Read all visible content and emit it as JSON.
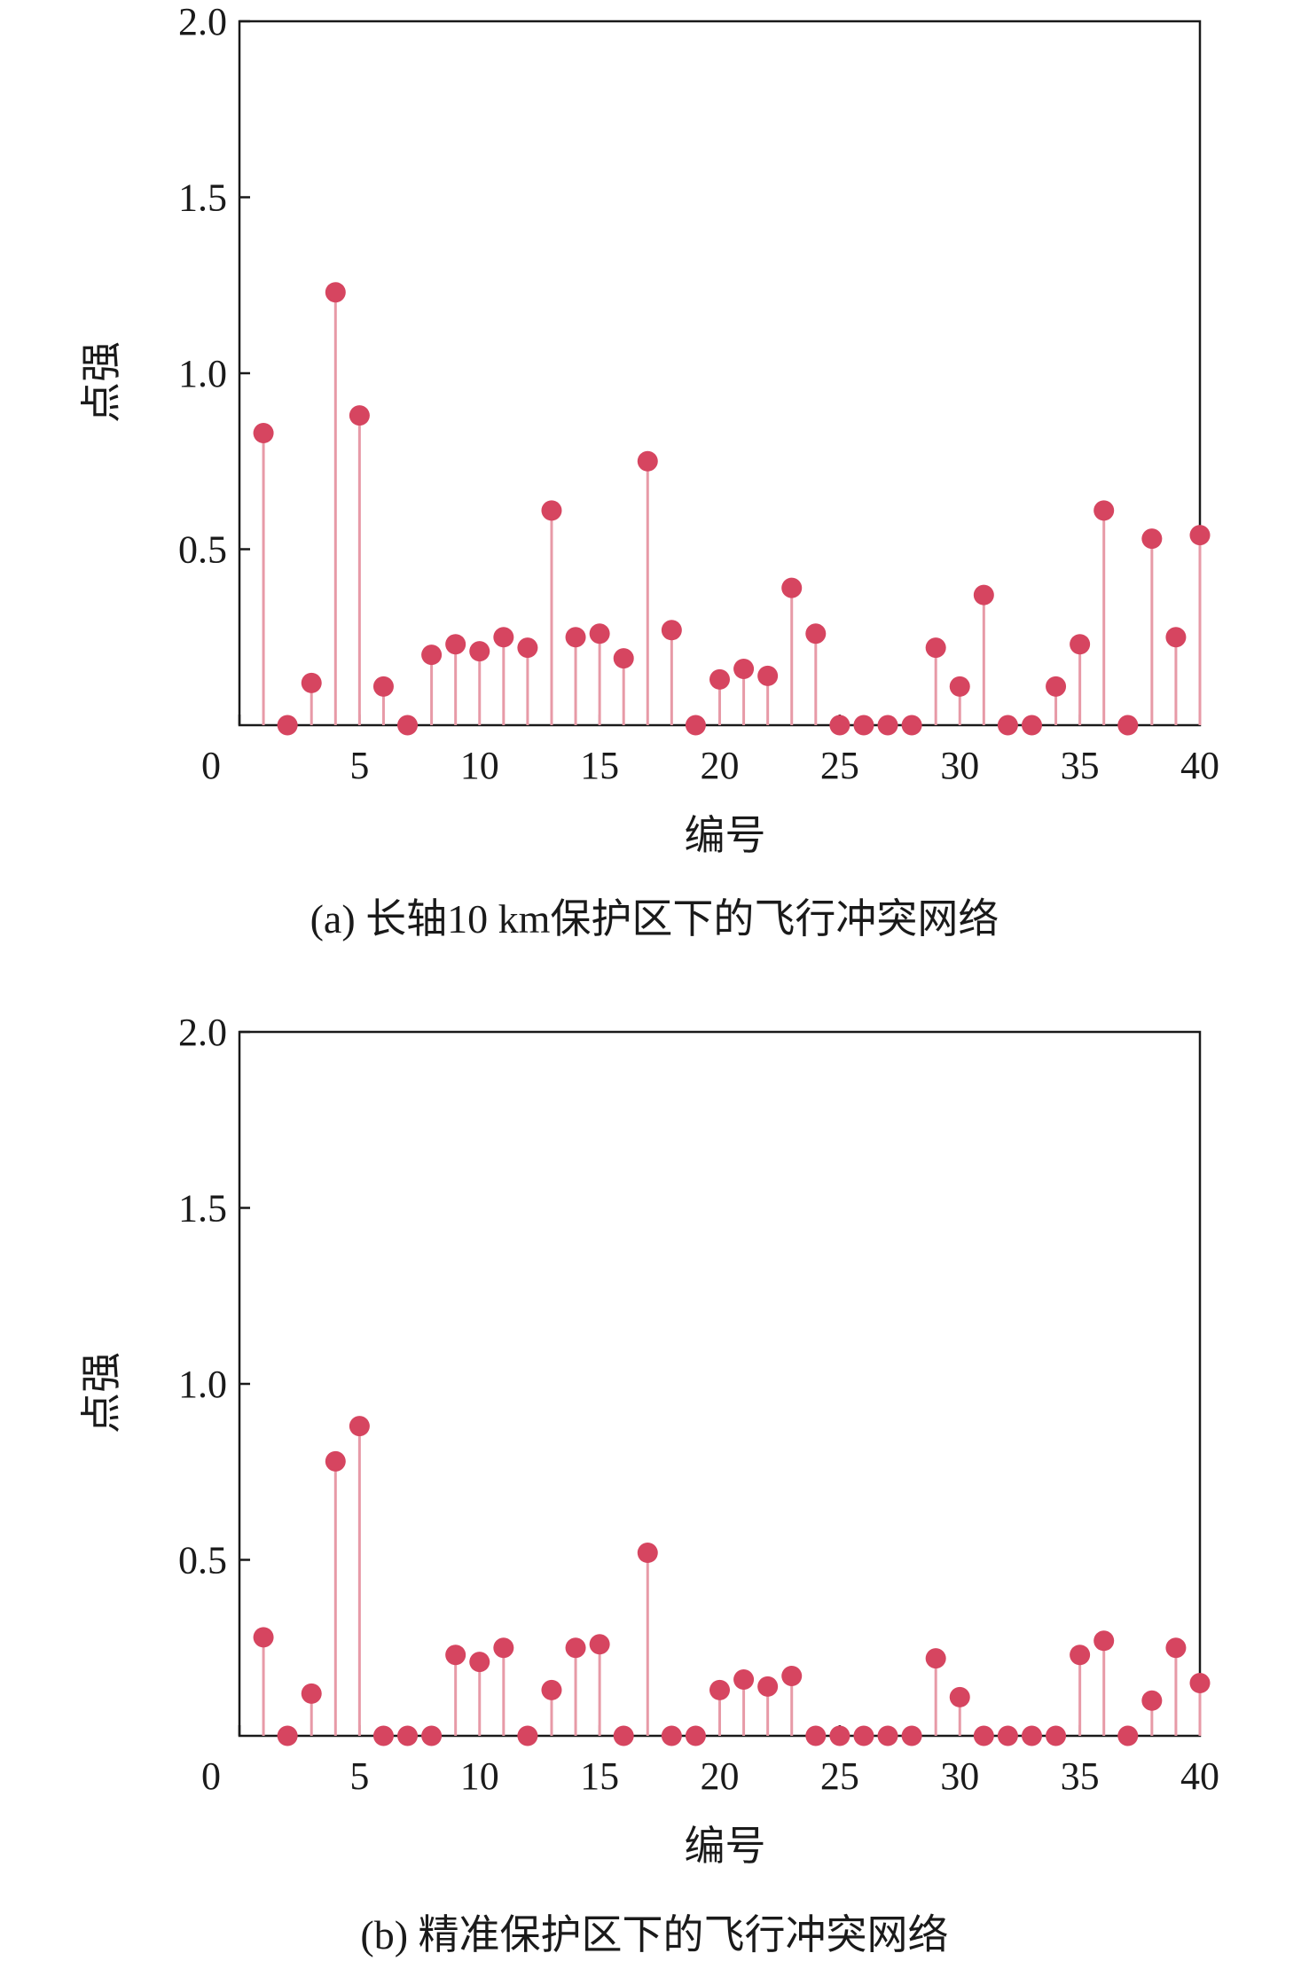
{
  "chart_data": [
    {
      "type": "stem",
      "caption": "(a) 长轴10 km保护区下的飞行冲突网络",
      "xlabel": "编号",
      "ylabel": "点强",
      "xlim": [
        0,
        40
      ],
      "ylim": [
        0,
        2.0
      ],
      "xticks": [
        0,
        5,
        10,
        15,
        20,
        25,
        30,
        35,
        40
      ],
      "xtick_labels": [
        "0",
        "5",
        "10",
        "15",
        "20",
        "25",
        "30",
        "35",
        "40"
      ],
      "yticks": [
        0.5,
        1.0,
        1.5,
        2.0
      ],
      "ytick_labels": [
        "0.5",
        "1.0",
        "1.5",
        "2.0"
      ],
      "grid": false,
      "marker_color": "#d64560",
      "x": [
        1,
        2,
        3,
        4,
        5,
        6,
        7,
        8,
        9,
        10,
        11,
        12,
        13,
        14,
        15,
        16,
        17,
        18,
        19,
        20,
        21,
        22,
        23,
        24,
        25,
        26,
        27,
        28,
        29,
        30,
        31,
        32,
        33,
        34,
        35,
        36,
        37,
        38,
        39,
        40
      ],
      "values": [
        0.83,
        0.0,
        0.12,
        1.23,
        0.88,
        0.11,
        0.0,
        0.2,
        0.23,
        0.21,
        0.25,
        0.22,
        0.61,
        0.25,
        0.26,
        0.19,
        0.75,
        0.27,
        0.0,
        0.13,
        0.16,
        0.14,
        0.39,
        0.26,
        0.0,
        0.0,
        0.0,
        0.0,
        0.22,
        0.11,
        0.37,
        0.0,
        0.0,
        0.11,
        0.23,
        0.61,
        0.0,
        0.53,
        0.25,
        0.54
      ]
    },
    {
      "type": "stem",
      "caption": "(b) 精准保护区下的飞行冲突网络",
      "xlabel": "编号",
      "ylabel": "点强",
      "xlim": [
        0,
        40
      ],
      "ylim": [
        0,
        2.0
      ],
      "xticks": [
        0,
        5,
        10,
        15,
        20,
        25,
        30,
        35,
        40
      ],
      "xtick_labels": [
        "0",
        "5",
        "10",
        "15",
        "20",
        "25",
        "30",
        "35",
        "40"
      ],
      "yticks": [
        0.5,
        1.0,
        1.5,
        2.0
      ],
      "ytick_labels": [
        "0.5",
        "1.0",
        "1.5",
        "2.0"
      ],
      "grid": false,
      "marker_color": "#d64560",
      "x": [
        1,
        2,
        3,
        4,
        5,
        6,
        7,
        8,
        9,
        10,
        11,
        12,
        13,
        14,
        15,
        16,
        17,
        18,
        19,
        20,
        21,
        22,
        23,
        24,
        25,
        26,
        27,
        28,
        29,
        30,
        31,
        32,
        33,
        34,
        35,
        36,
        37,
        38,
        39,
        40
      ],
      "values": [
        0.28,
        0.0,
        0.12,
        0.78,
        0.88,
        0.0,
        0.0,
        0.0,
        0.23,
        0.21,
        0.25,
        0.0,
        0.13,
        0.25,
        0.26,
        0.0,
        0.52,
        0.0,
        0.0,
        0.13,
        0.16,
        0.14,
        0.17,
        0.0,
        0.0,
        0.0,
        0.0,
        0.0,
        0.22,
        0.11,
        0.0,
        0.0,
        0.0,
        0.0,
        0.23,
        0.27,
        0.0,
        0.1,
        0.25,
        0.15
      ]
    }
  ]
}
